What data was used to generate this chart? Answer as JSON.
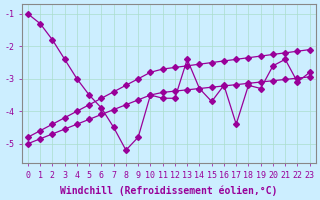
{
  "title": "",
  "xlabel": "Windchill (Refroidissement éolien,°C)",
  "ylabel": "",
  "bg_color": "#cceeff",
  "line_color": "#990099",
  "grid_color": "#aaddcc",
  "axis_color": "#888888",
  "x_data": [
    0,
    1,
    2,
    3,
    4,
    5,
    6,
    7,
    8,
    9,
    10,
    11,
    12,
    13,
    14,
    15,
    16,
    17,
    18,
    19,
    20,
    21,
    22,
    23
  ],
  "y_main": [
    -1.0,
    -1.3,
    -1.8,
    -2.4,
    -3.0,
    -3.5,
    -3.9,
    -4.5,
    -5.2,
    -4.8,
    -3.5,
    -3.6,
    -3.6,
    -2.4,
    -3.3,
    -3.7,
    -3.2,
    -4.4,
    -3.2,
    -3.3,
    -2.6,
    -2.4,
    -3.1,
    -2.8
  ],
  "y_upper": [
    -4.8,
    -4.6,
    -4.4,
    -4.2,
    -4.0,
    -3.8,
    -3.6,
    -3.4,
    -3.2,
    -3.0,
    -2.8,
    -2.7,
    -2.65,
    -2.6,
    -2.55,
    -2.5,
    -2.45,
    -2.4,
    -2.35,
    -2.3,
    -2.25,
    -2.2,
    -2.15,
    -2.1
  ],
  "y_lower": [
    -5.0,
    -4.85,
    -4.7,
    -4.55,
    -4.4,
    -4.25,
    -4.1,
    -3.95,
    -3.8,
    -3.65,
    -3.5,
    -3.42,
    -3.38,
    -3.34,
    -3.3,
    -3.26,
    -3.22,
    -3.18,
    -3.14,
    -3.1,
    -3.06,
    -3.02,
    -2.98,
    -2.94
  ],
  "ylim": [
    -5.6,
    -0.7
  ],
  "xlim": [
    -0.5,
    23.5
  ],
  "yticks": [
    -5,
    -4,
    -3,
    -2,
    -1
  ],
  "xtick_labels": [
    "0",
    "1",
    "2",
    "3",
    "4",
    "5",
    "6",
    "7",
    "8",
    "9",
    "10",
    "11",
    "12",
    "13",
    "14",
    "15",
    "16",
    "17",
    "18",
    "19",
    "20",
    "21",
    "22",
    "23"
  ],
  "marker": "D",
  "markersize": 3,
  "linewidth": 0.9,
  "xlabel_fontsize": 7,
  "tick_fontsize": 6,
  "xlabel_color": "#990099",
  "tick_color": "#990099"
}
